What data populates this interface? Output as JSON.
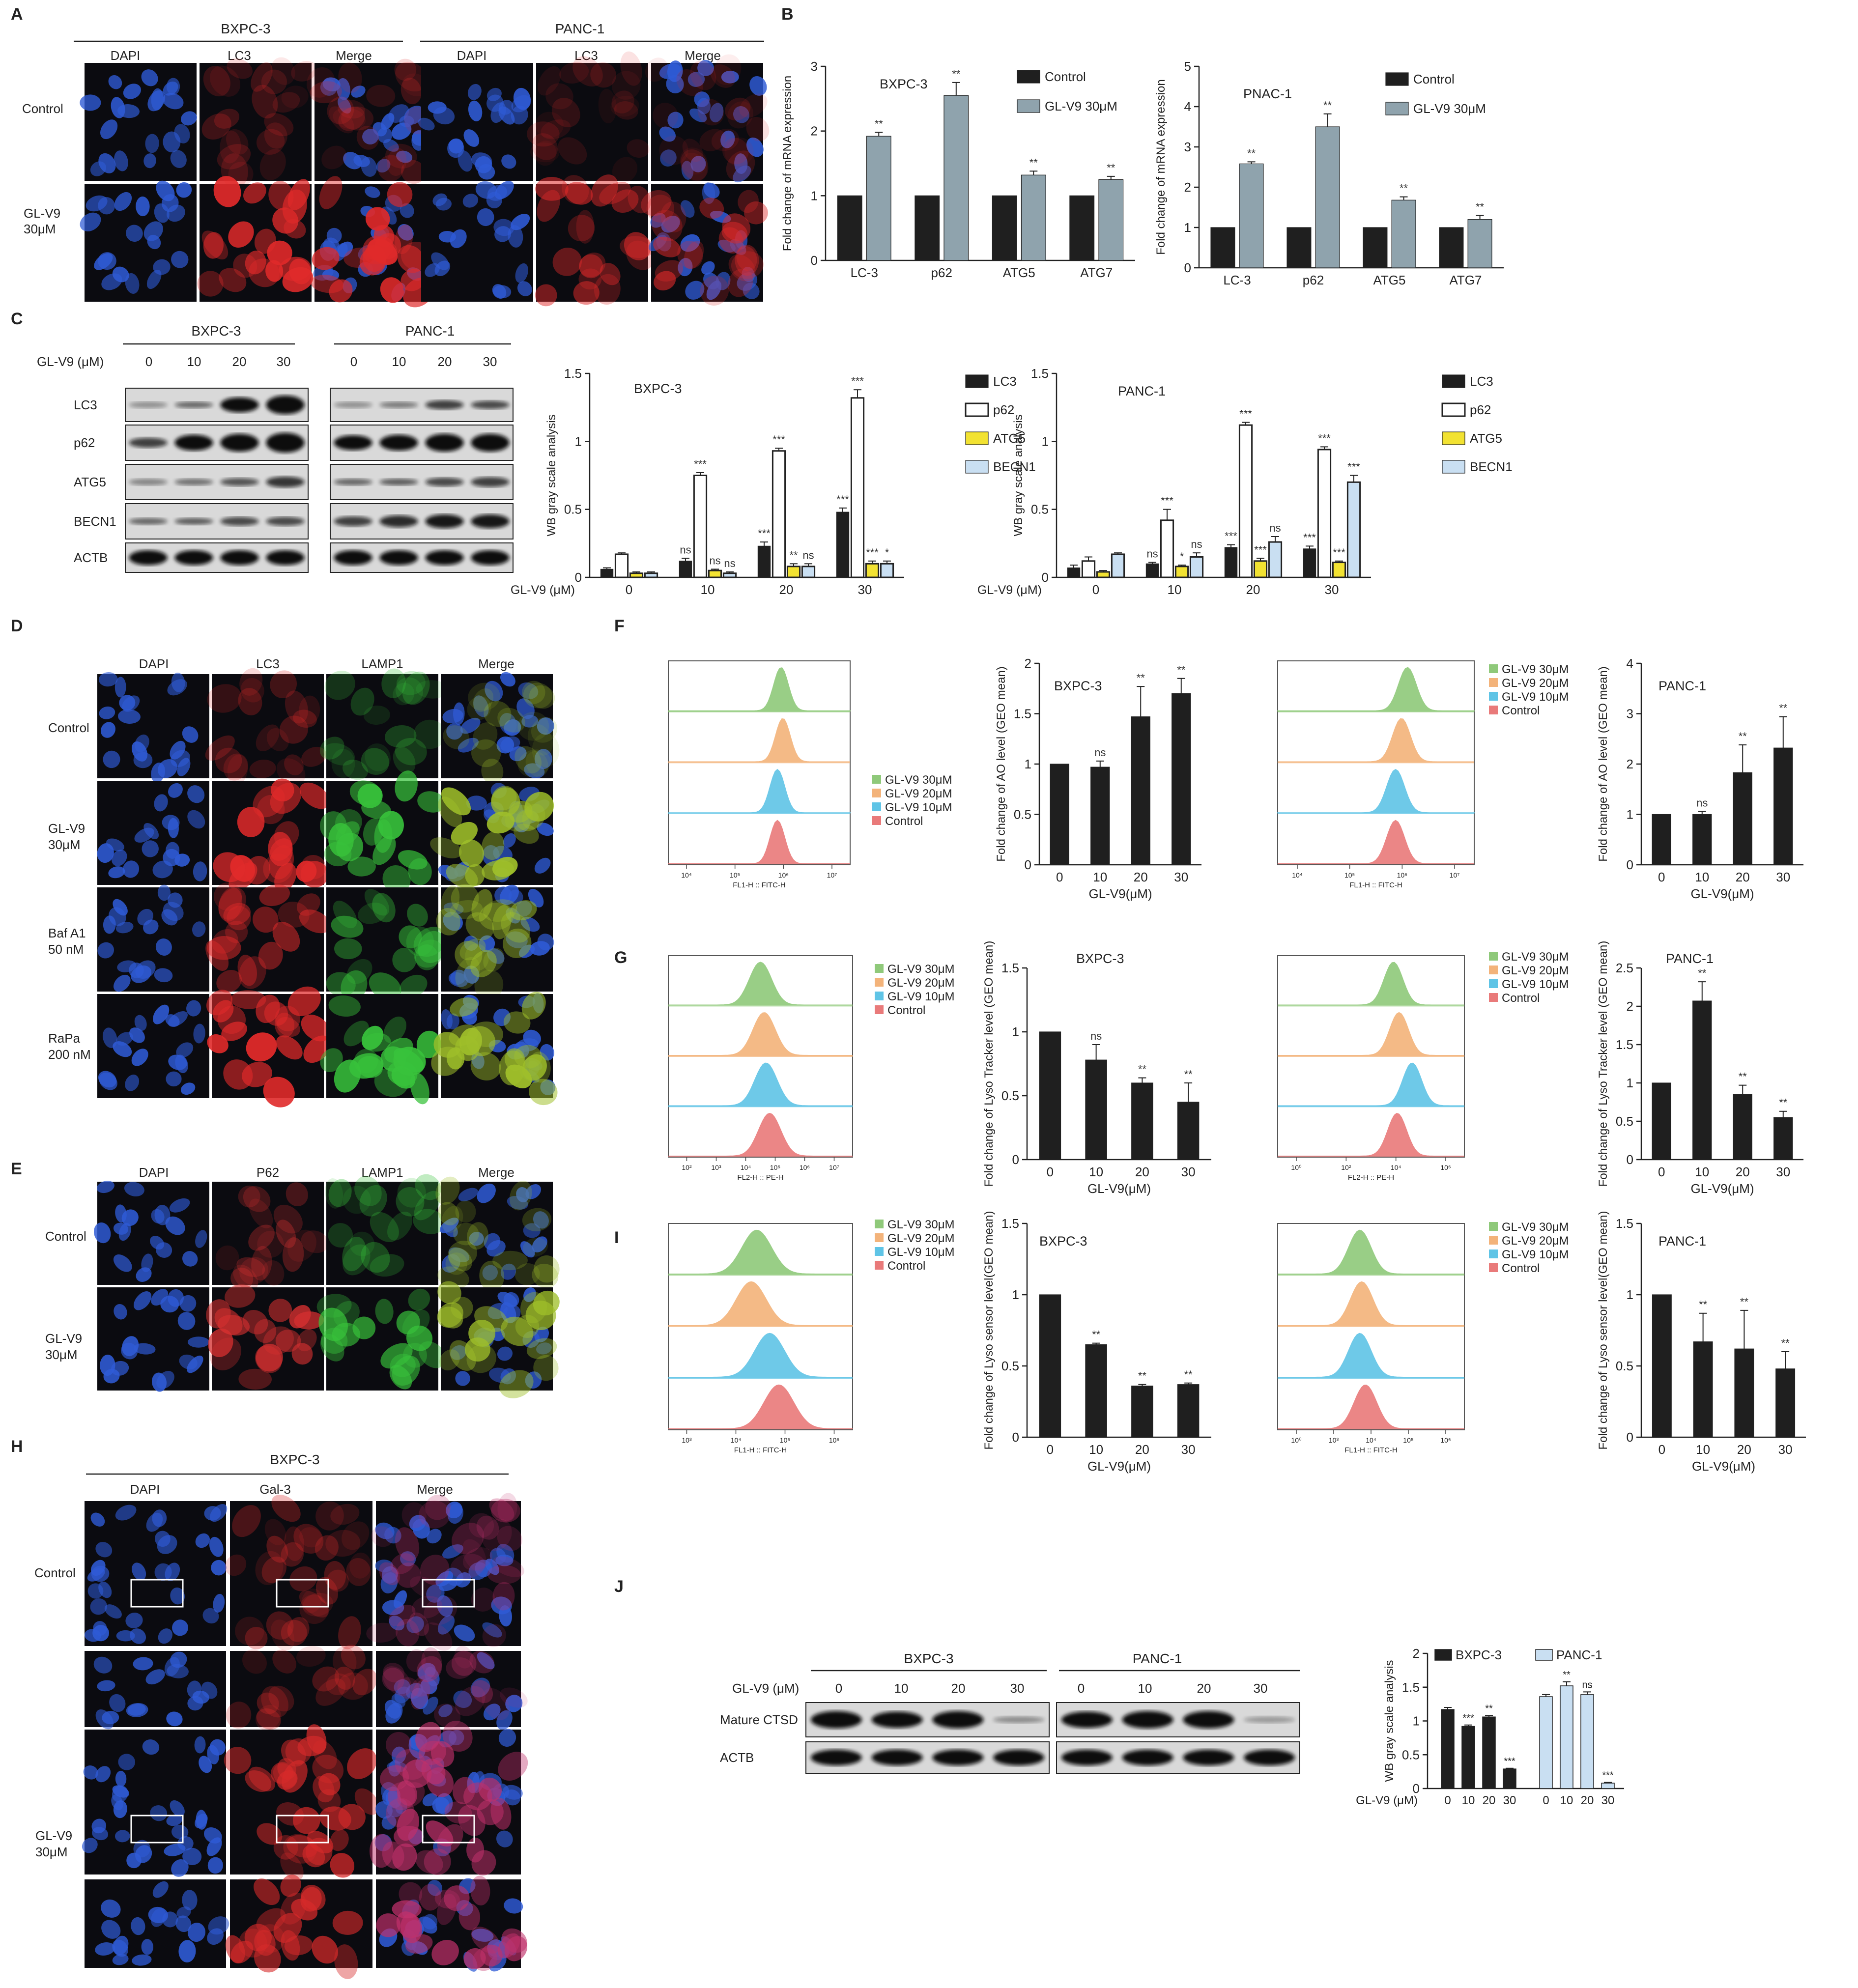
{
  "panels": {
    "A": "A",
    "B": "B",
    "C": "C",
    "D": "D",
    "E": "E",
    "F": "F",
    "G": "G",
    "H": "H",
    "I": "I",
    "J": "J"
  },
  "panel_A": {
    "groups": [
      "BXPC-3",
      "PANC-1"
    ],
    "channels": [
      "DAPI",
      "LC3",
      "Merge"
    ],
    "rows": [
      "Control",
      "GL-V9\n30μM"
    ]
  },
  "panel_D": {
    "channels": [
      "DAPI",
      "LC3",
      "LAMP1",
      "Merge"
    ],
    "rows": [
      "Control",
      "GL-V9\n30μM",
      "Baf A1\n50 nM",
      "RaPa\n200 nM"
    ]
  },
  "panel_E": {
    "channels": [
      "DAPI",
      "P62",
      "LAMP1",
      "Merge"
    ],
    "rows": [
      "Control",
      "GL-V9\n30μM"
    ]
  },
  "panel_H": {
    "group": "BXPC-3",
    "channels": [
      "DAPI",
      "Gal-3",
      "Merge"
    ],
    "rows": [
      "Control",
      "GL-V9\n30μM"
    ]
  },
  "panel_C_blot": {
    "groups": [
      "BXPC-3",
      "PANC-1"
    ],
    "treatment_label": "GL-V9 (μM)",
    "doses": [
      "0",
      "10",
      "20",
      "30"
    ],
    "proteins": [
      "LC3",
      "p62",
      "ATG5",
      "BECN1",
      "ACTB"
    ]
  },
  "panel_J_blot": {
    "groups": [
      "BXPC-3",
      "PANC-1"
    ],
    "treatment_label": "GL-V9 (μM)",
    "doses": [
      "0",
      "10",
      "20",
      "30"
    ],
    "proteins": [
      "Mature CTSD",
      "ACTB"
    ]
  },
  "flow_histograms": {
    "F_left": {
      "legend": [
        "GL-V9 30μM",
        "GL-V9 20μM",
        "GL-V9 10μM",
        "Control"
      ],
      "xlabel": "FL1-H :: FITC-H",
      "ticks": [
        "10⁴",
        "10⁵",
        "10⁶",
        "10⁷"
      ]
    },
    "F_right": {
      "legend": [
        "GL-V9 30μM",
        "GL-V9 20μM",
        "GL-V9 10μM",
        "Control"
      ],
      "xlabel": "FL1-H :: FITC-H",
      "ticks": [
        "10⁴",
        "10⁵",
        "10⁶",
        "10⁷"
      ]
    },
    "G_left": {
      "legend": [
        "GL-V9 30μM",
        "GL-V9 20μM",
        "GL-V9 10μM",
        "Control"
      ],
      "xlabel": "FL2-H :: PE-H",
      "ticks": [
        "10²",
        "10³",
        "10⁴",
        "10⁵",
        "10⁶",
        "10⁷"
      ]
    },
    "G_right": {
      "legend": [
        "GL-V9 30μM",
        "GL-V9 20μM",
        "GL-V9 10μM",
        "Control"
      ],
      "xlabel": "FL2-H :: PE-H",
      "ticks": [
        "10⁰",
        "10²",
        "10⁴",
        "10⁶"
      ]
    },
    "I_left": {
      "legend": [
        "GL-V9 30μM",
        "GL-V9 20μM",
        "GL-V9 10μM",
        "Control"
      ],
      "xlabel": "FL1-H :: FITC-H",
      "ticks": [
        "10³",
        "10⁴",
        "10⁵",
        "10⁶"
      ]
    },
    "I_right": {
      "legend": [
        "GL-V9 30μM",
        "GL-V9 20μM",
        "GL-V9 10μM",
        "Control"
      ],
      "xlabel": "FL1-H :: FITC-H",
      "ticks": [
        "10⁰",
        "10³",
        "10⁴",
        "10⁵",
        "10⁶"
      ]
    },
    "colors": [
      "#8fc97a",
      "#f3b37a",
      "#5fc4e6",
      "#e97a7a"
    ]
  },
  "chart_data": [
    {
      "id": "B_left",
      "type": "bar",
      "title": "BXPC-3",
      "categories": [
        "LC-3",
        "p62",
        "ATG5",
        "ATG7"
      ],
      "series": [
        {
          "name": "Control",
          "values": [
            1,
            1,
            1,
            1
          ],
          "err": [
            0,
            0,
            0,
            0
          ],
          "color": "#1f1f1f"
        },
        {
          "name": "GL-V9 30μM",
          "values": [
            1.92,
            2.55,
            1.32,
            1.25
          ],
          "err": [
            0.06,
            0.2,
            0.06,
            0.05
          ],
          "color": "#8fa3ad"
        }
      ],
      "sig": [
        [
          "",
          "**"
        ],
        [
          "",
          "**"
        ],
        [
          "",
          "**"
        ],
        [
          "",
          "**"
        ]
      ],
      "ylabel": "Fold change of mRNA expression",
      "ylim": [
        0,
        3
      ],
      "yticks": [
        0,
        1,
        2,
        3
      ]
    },
    {
      "id": "B_right",
      "type": "bar",
      "title": "PNAC-1",
      "categories": [
        "LC-3",
        "p62",
        "ATG5",
        "ATG7"
      ],
      "series": [
        {
          "name": "Control",
          "values": [
            1,
            1,
            1,
            1
          ],
          "err": [
            0,
            0,
            0,
            0
          ],
          "color": "#1f1f1f"
        },
        {
          "name": "GL-V9 30μM",
          "values": [
            2.58,
            3.5,
            1.68,
            1.2
          ],
          "err": [
            0.05,
            0.32,
            0.08,
            0.1
          ],
          "color": "#8fa3ad"
        }
      ],
      "sig": [
        [
          "",
          "**"
        ],
        [
          "",
          "**"
        ],
        [
          "",
          "**"
        ],
        [
          "",
          "**"
        ]
      ],
      "ylabel": "Fold change of mRNA expression",
      "ylim": [
        0,
        5
      ],
      "yticks": [
        0,
        1,
        2,
        3,
        4,
        5
      ]
    },
    {
      "id": "C_left",
      "type": "bar",
      "title": "BXPC-3",
      "categories": [
        "0",
        "10",
        "20",
        "30"
      ],
      "xprefix": "GL-V9 (μM)",
      "series": [
        {
          "name": "LC3",
          "values": [
            0.06,
            0.12,
            0.23,
            0.48
          ],
          "err": [
            0.01,
            0.02,
            0.03,
            0.03
          ],
          "color": "#1f1f1f",
          "outline": false
        },
        {
          "name": "p62",
          "values": [
            0.17,
            0.75,
            0.93,
            1.32
          ],
          "err": [
            0.01,
            0.02,
            0.02,
            0.06
          ],
          "color": "#ffffff",
          "outline": true
        },
        {
          "name": "ATG5",
          "values": [
            0.03,
            0.05,
            0.08,
            0.1
          ],
          "err": [
            0.01,
            0.01,
            0.02,
            0.02
          ],
          "color": "#f2e232",
          "outline": true
        },
        {
          "name": "BECN1",
          "values": [
            0.03,
            0.03,
            0.08,
            0.1
          ],
          "err": [
            0.01,
            0.01,
            0.02,
            0.02
          ],
          "color": "#c9dff2",
          "outline": true
        }
      ],
      "sig": [
        [
          "",
          "",
          "",
          ""
        ],
        [
          "ns",
          "***",
          "ns",
          "ns"
        ],
        [
          "***",
          "***",
          "**",
          "ns"
        ],
        [
          "***",
          "***",
          "***",
          "*"
        ]
      ],
      "ylabel": "WB gray scale analysis",
      "ylim": [
        0,
        1.5
      ],
      "yticks": [
        0,
        0.5,
        1.0,
        1.5
      ]
    },
    {
      "id": "C_right",
      "type": "bar",
      "title": "PANC-1",
      "categories": [
        "0",
        "10",
        "20",
        "30"
      ],
      "xprefix": "GL-V9 (μM)",
      "series": [
        {
          "name": "LC3",
          "values": [
            0.07,
            0.1,
            0.22,
            0.21
          ],
          "err": [
            0.02,
            0.01,
            0.02,
            0.02
          ],
          "color": "#1f1f1f",
          "outline": false
        },
        {
          "name": "p62",
          "values": [
            0.12,
            0.42,
            1.12,
            0.94
          ],
          "err": [
            0.03,
            0.08,
            0.02,
            0.02
          ],
          "color": "#ffffff",
          "outline": true
        },
        {
          "name": "ATG5",
          "values": [
            0.04,
            0.08,
            0.12,
            0.11
          ],
          "err": [
            0.01,
            0.01,
            0.02,
            0.01
          ],
          "color": "#f2e232",
          "outline": true
        },
        {
          "name": "BECN1",
          "values": [
            0.17,
            0.15,
            0.26,
            0.7
          ],
          "err": [
            0.01,
            0.03,
            0.04,
            0.05
          ],
          "color": "#c9dff2",
          "outline": true
        }
      ],
      "sig": [
        [
          "",
          "",
          "",
          ""
        ],
        [
          "ns",
          "***",
          "*",
          "ns"
        ],
        [
          "***",
          "***",
          "***",
          "ns"
        ],
        [
          "***",
          "***",
          "***",
          "***"
        ]
      ],
      "ylabel": "WB gray scale analysis",
      "ylim": [
        0,
        1.5
      ],
      "yticks": [
        0,
        0.5,
        1.0,
        1.5
      ]
    },
    {
      "id": "F_left",
      "type": "bar",
      "title": "BXPC-3",
      "categories": [
        "0",
        "10",
        "20",
        "30"
      ],
      "series": [
        {
          "name": "",
          "values": [
            1,
            0.97,
            1.47,
            1.7
          ],
          "err": [
            0,
            0.06,
            0.3,
            0.15
          ],
          "color": "#1f1f1f"
        }
      ],
      "sig": [
        [
          ""
        ],
        [
          "ns"
        ],
        [
          "**"
        ],
        [
          "**"
        ]
      ],
      "ylabel": "Fold  change of AO level (GEO mean)",
      "xlabel": "GL-V9(μM)",
      "ylim": [
        0,
        2.0
      ],
      "yticks": [
        0,
        0.5,
        1.0,
        1.5,
        2.0
      ]
    },
    {
      "id": "F_right",
      "type": "bar",
      "title": "PANC-1",
      "categories": [
        "0",
        "10",
        "20",
        "30"
      ],
      "series": [
        {
          "name": "",
          "values": [
            1,
            1,
            1.83,
            2.32
          ],
          "err": [
            0,
            0.06,
            0.55,
            0.62
          ],
          "color": "#1f1f1f"
        }
      ],
      "sig": [
        [
          ""
        ],
        [
          "ns"
        ],
        [
          "**"
        ],
        [
          "**"
        ]
      ],
      "ylabel": "Fold  change of AO level (GEO mean)",
      "xlabel": "GL-V9(μM)",
      "ylim": [
        0,
        4
      ],
      "yticks": [
        0,
        1,
        2,
        3,
        4
      ]
    },
    {
      "id": "G_left",
      "type": "bar",
      "title": "BXPC-3",
      "categories": [
        "0",
        "10",
        "20",
        "30"
      ],
      "series": [
        {
          "name": "",
          "values": [
            1,
            0.78,
            0.6,
            0.45
          ],
          "err": [
            0,
            0.12,
            0.04,
            0.15
          ],
          "color": "#1f1f1f"
        }
      ],
      "sig": [
        [
          ""
        ],
        [
          "ns"
        ],
        [
          "**"
        ],
        [
          "**"
        ]
      ],
      "ylabel": "Fold change of  Lyso Tracker level (GEO mean)",
      "xlabel": "GL-V9(μM)",
      "ylim": [
        0,
        1.5
      ],
      "yticks": [
        0,
        0.5,
        1,
        1.5
      ]
    },
    {
      "id": "G_right",
      "type": "bar",
      "title": "PANC-1",
      "categories": [
        "0",
        "10",
        "20",
        "30"
      ],
      "series": [
        {
          "name": "",
          "values": [
            1,
            2.07,
            0.85,
            0.55
          ],
          "err": [
            0,
            0.25,
            0.12,
            0.08
          ],
          "color": "#1f1f1f"
        }
      ],
      "sig": [
        [
          ""
        ],
        [
          "**"
        ],
        [
          "**"
        ],
        [
          "**"
        ]
      ],
      "ylabel": "Fold change of  Lyso Tracker level (GEO mean)",
      "xlabel": "GL-V9(μM)",
      "ylim": [
        0,
        2.5
      ],
      "yticks": [
        0,
        0.5,
        1,
        1.5,
        2,
        2.5
      ]
    },
    {
      "id": "I_left",
      "type": "bar",
      "title": "BXPC-3",
      "categories": [
        "0",
        "10",
        "20",
        "30"
      ],
      "series": [
        {
          "name": "",
          "values": [
            1,
            0.65,
            0.36,
            0.37
          ],
          "err": [
            0,
            0.01,
            0.01,
            0.01
          ],
          "color": "#1f1f1f"
        }
      ],
      "sig": [
        [
          ""
        ],
        [
          "**"
        ],
        [
          "**"
        ],
        [
          "**"
        ]
      ],
      "ylabel": "Fold change of Lyso sensor level(GEO mean)",
      "xlabel": "GL-V9(μM)",
      "ylim": [
        0,
        1.5
      ],
      "yticks": [
        0,
        0.5,
        1.0,
        1.5
      ]
    },
    {
      "id": "I_right",
      "type": "bar",
      "title": "PANC-1",
      "categories": [
        "0",
        "10",
        "20",
        "30"
      ],
      "series": [
        {
          "name": "",
          "values": [
            1,
            0.67,
            0.62,
            0.48
          ],
          "err": [
            0,
            0.2,
            0.27,
            0.12
          ],
          "color": "#1f1f1f"
        }
      ],
      "sig": [
        [
          ""
        ],
        [
          "**"
        ],
        [
          "**"
        ],
        [
          "**"
        ]
      ],
      "ylabel": "Fold change of Lyso sensor level(GEO mean)",
      "xlabel": "GL-V9(μM)",
      "ylim": [
        0,
        1.5
      ],
      "yticks": [
        0,
        0.5,
        1.0,
        1.5
      ]
    },
    {
      "id": "J",
      "type": "bar",
      "title": "",
      "categories": [
        "0",
        "10",
        "20",
        "30"
      ],
      "xprefix": "GL-V9 (μM)",
      "groups": [
        {
          "name": "BXPC-3",
          "values": [
            1.17,
            0.92,
            1.06,
            0.29
          ],
          "err": [
            0.03,
            0.02,
            0.02,
            0.01
          ],
          "color": "#1f1f1f",
          "sig": [
            "",
            "***",
            "**",
            "***"
          ]
        },
        {
          "name": "PANC-1",
          "values": [
            1.36,
            1.52,
            1.39,
            0.08
          ],
          "err": [
            0.03,
            0.06,
            0.04,
            0.01
          ],
          "color": "#c9dff2",
          "sig": [
            "",
            "**",
            "ns",
            "***"
          ]
        }
      ],
      "ylabel": "WB gray scale analysis",
      "ylim": [
        0,
        2.0
      ],
      "yticks": [
        0,
        0.5,
        1.0,
        1.5,
        2.0
      ]
    }
  ]
}
